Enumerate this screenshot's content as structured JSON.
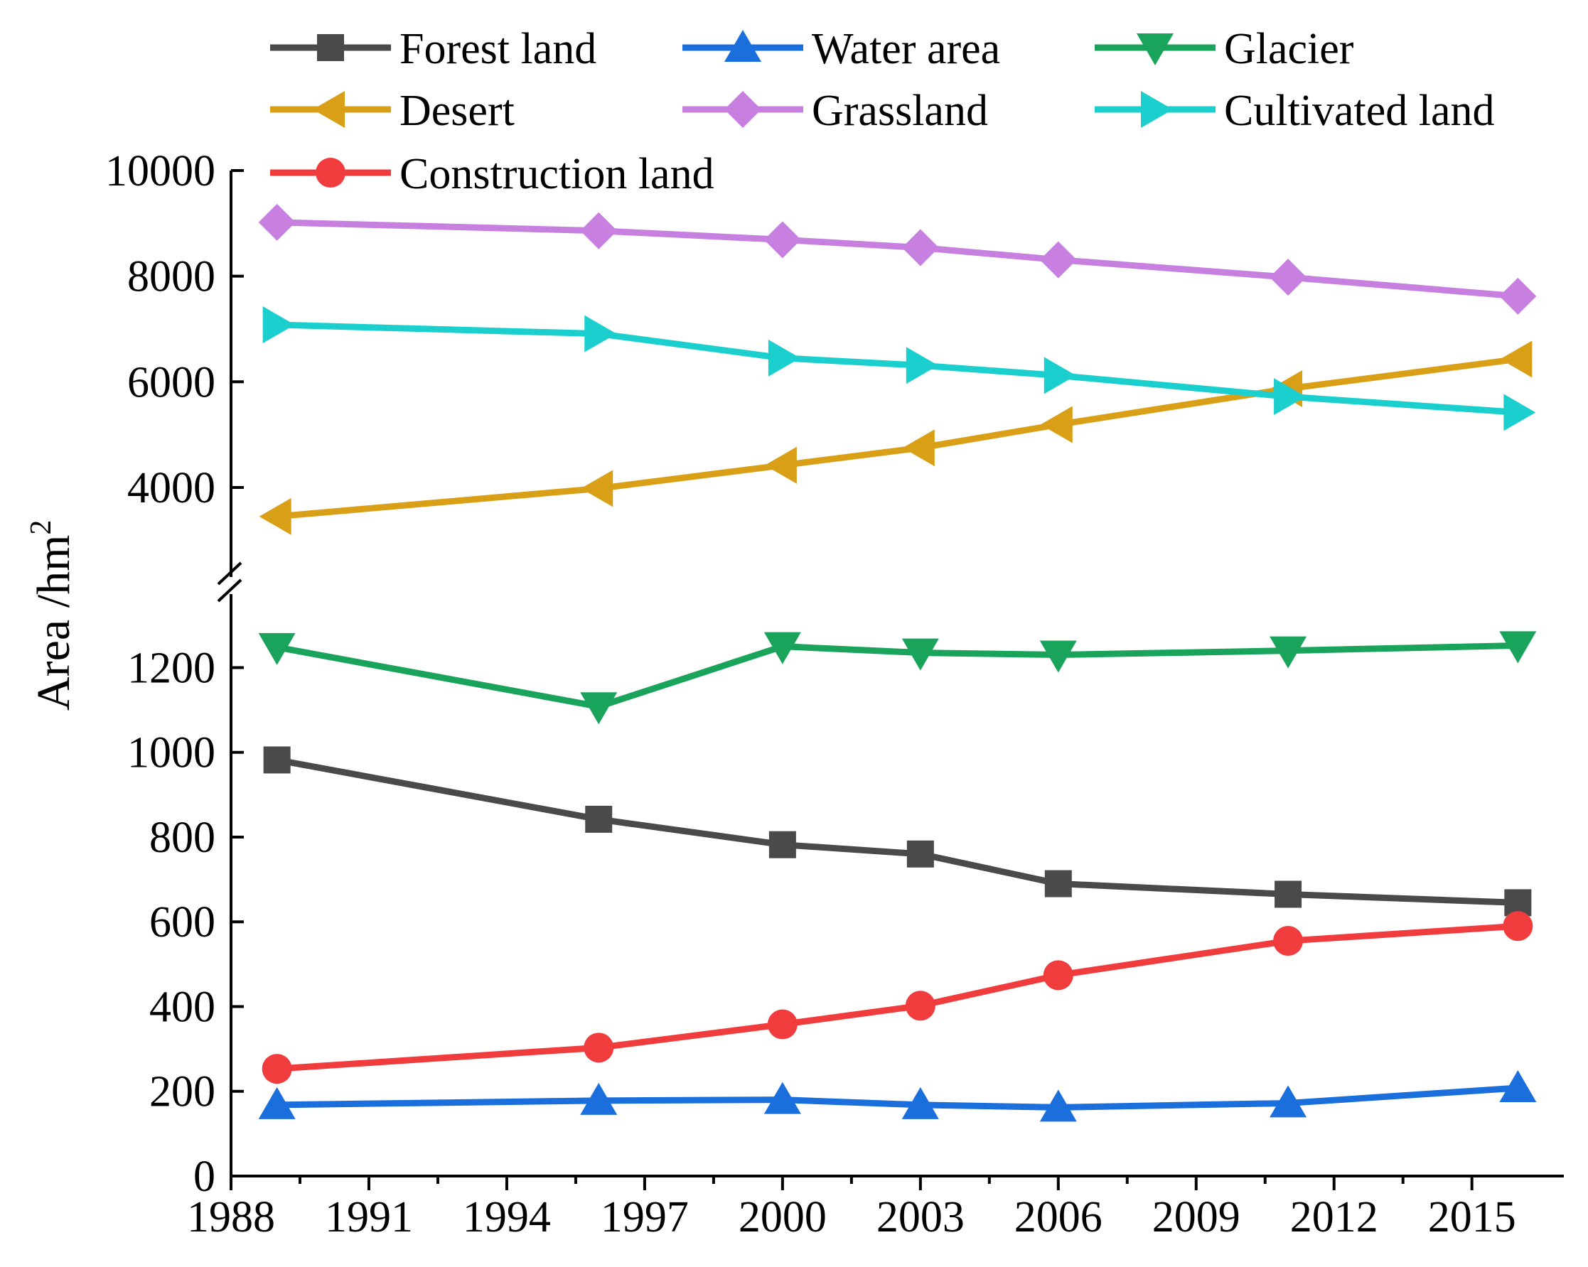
{
  "chart_data": {
    "type": "line",
    "title": "",
    "xlabel": "",
    "ylabel": "Area /hm",
    "ylabel_superscript": "2",
    "x": [
      1989,
      1996,
      2000,
      2003,
      2006,
      2011,
      2016
    ],
    "x_ticks": [
      "1988",
      "1991",
      "1994",
      "1997",
      "2000",
      "2003",
      "2006",
      "2009",
      "2012",
      "2015"
    ],
    "xlim": [
      1988,
      2017
    ],
    "y_axis_break": true,
    "y_lower_range": [
      0,
      1350
    ],
    "y_upper_range": [
      2600,
      10000
    ],
    "y_ticks_lower": [
      "0",
      "200",
      "400",
      "600",
      "800",
      "1000",
      "1200"
    ],
    "y_ticks_upper": [
      "4000",
      "6000",
      "8000",
      "10000"
    ],
    "legend_position": "top",
    "series": [
      {
        "name": "Forest land",
        "color": "#4a4a4a",
        "marker": "square",
        "values": [
          982,
          842,
          782,
          760,
          690,
          665,
          645
        ]
      },
      {
        "name": "Water area",
        "color": "#1a6fdc",
        "marker": "triangle-up",
        "values": [
          168,
          178,
          180,
          168,
          162,
          172,
          208
        ]
      },
      {
        "name": "Glacier",
        "color": "#1aa35a",
        "marker": "triangle-down",
        "values": [
          1248,
          1108,
          1250,
          1235,
          1230,
          1240,
          1252
        ]
      },
      {
        "name": "Desert",
        "color": "#d9a017",
        "marker": "triangle-left",
        "values": [
          3450,
          3980,
          4420,
          4750,
          5190,
          5870,
          6430
        ]
      },
      {
        "name": "Grassland",
        "color": "#c77fe0",
        "marker": "diamond",
        "values": [
          9020,
          8860,
          8690,
          8540,
          8310,
          7980,
          7620
        ]
      },
      {
        "name": "Cultivated land",
        "color": "#1ccfcf",
        "marker": "triangle-right",
        "values": [
          7080,
          6910,
          6450,
          6310,
          6120,
          5720,
          5420
        ]
      },
      {
        "name": "Construction land",
        "color": "#f03c3c",
        "marker": "circle",
        "values": [
          253,
          303,
          358,
          402,
          474,
          555,
          590
        ]
      }
    ]
  }
}
